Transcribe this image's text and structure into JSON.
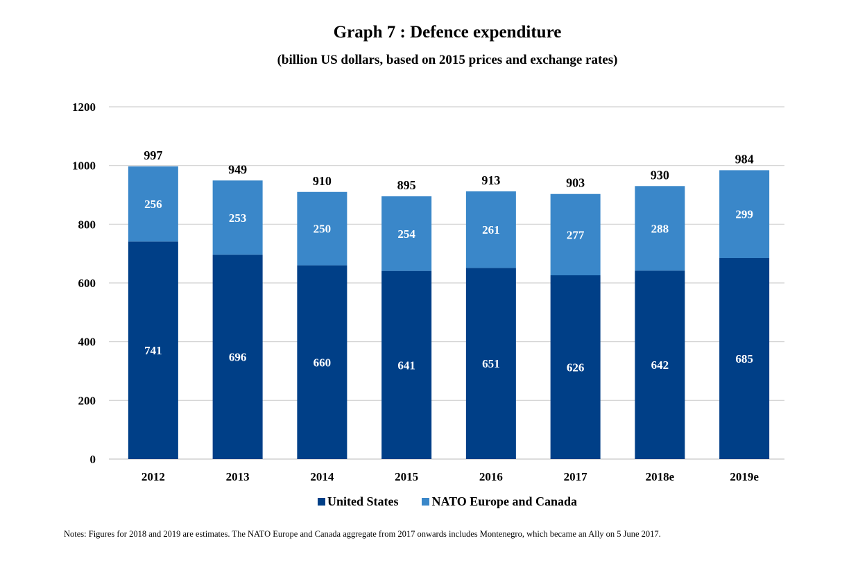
{
  "chart_data": {
    "type": "bar",
    "stacked": true,
    "title": "Graph 7 : Defence expenditure",
    "subtitle": "(billion US dollars, based on 2015 prices and exchange rates)",
    "xlabel": "",
    "ylabel": "",
    "categories": [
      "2012",
      "2013",
      "2014",
      "2015",
      "2016",
      "2017",
      "2018e",
      "2019e"
    ],
    "series": [
      {
        "name": "United States",
        "color": "#003f87",
        "values": [
          741,
          696,
          660,
          641,
          651,
          626,
          642,
          685
        ]
      },
      {
        "name": "NATO Europe and Canada",
        "color": "#3a87c9",
        "values": [
          256,
          253,
          250,
          254,
          261,
          277,
          288,
          299
        ]
      }
    ],
    "totals": [
      997,
      949,
      910,
      895,
      913,
      903,
      930,
      984
    ],
    "ylim": [
      0,
      1200
    ],
    "yticks": [
      0,
      200,
      400,
      600,
      800,
      1000,
      1200
    ],
    "grid": true,
    "gridColor": "#d0d0d0",
    "legend_position": "bottom"
  },
  "notes": "Notes: Figures for 2018 and 2019 are estimates. The NATO Europe and Canada aggregate from 2017 onwards includes Montenegro, which became an Ally on 5 June 2017."
}
